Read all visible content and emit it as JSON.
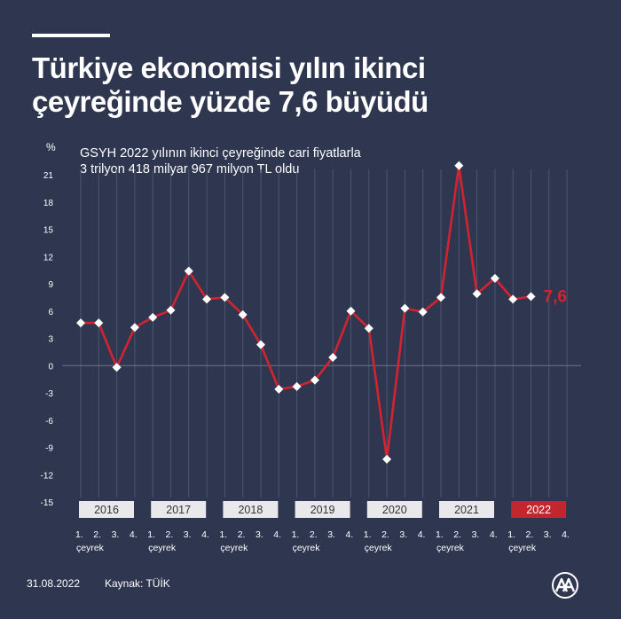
{
  "title_line1": "Türkiye ekonomisi yılın ikinci",
  "title_line2": "çeyreğinde yüzde 7,6 büyüdü",
  "subtitle_line1": "GSYH 2022 yılının ikinci çeyreğinde cari fiyatlarla",
  "subtitle_line2": "3 trilyon 418 milyar 967 milyon TL oldu",
  "footer": {
    "date": "31.08.2022",
    "source": "Kaynak: TÜİK",
    "logo_icon": "aa-logo-icon"
  },
  "colors": {
    "background": "#2e3650",
    "line": "#d42330",
    "marker": "#ffffff",
    "year_box": "#e9e9eb",
    "year_box_highlight": "#c1272d"
  },
  "chart_data": {
    "type": "line",
    "ylabel": "%",
    "ylim": [
      -15,
      21
    ],
    "yticks": [
      21,
      18,
      15,
      12,
      9,
      6,
      3,
      0,
      -3,
      -6,
      -9,
      -12,
      -15
    ],
    "grid": "vertical",
    "years": [
      "2016",
      "2017",
      "2018",
      "2019",
      "2020",
      "2021",
      "2022"
    ],
    "highlight_year": "2022",
    "quarter_labels": [
      "1.",
      "2.",
      "3.",
      "4."
    ],
    "quarter_caption": "çeyrek",
    "series": [
      {
        "values": [
          4.7,
          4.7,
          -0.2,
          4.2,
          5.3,
          6.1,
          10.4,
          7.3,
          7.5,
          5.6,
          2.3,
          -2.6,
          -2.3,
          -1.6,
          0.9,
          6.0,
          4.1,
          -10.3,
          6.3,
          5.9,
          7.5,
          22.0,
          7.9,
          9.6,
          7.3,
          7.6
        ],
        "final_label": "7,6"
      }
    ]
  }
}
